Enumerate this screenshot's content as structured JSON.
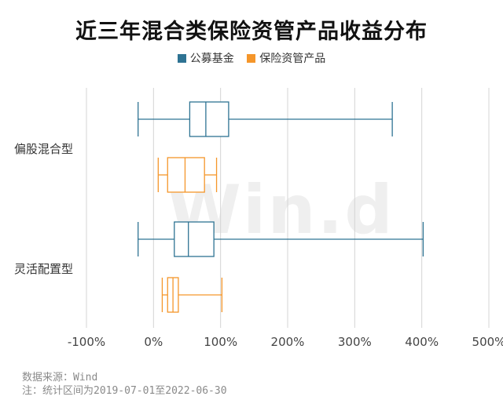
{
  "chart_data": {
    "type": "box",
    "title": "近三年混合类保险资管产品收益分布",
    "categories": [
      "偏股混合型",
      "灵活配置型"
    ],
    "x_tick_labels": [
      "-100%",
      "0%",
      "100%",
      "200%",
      "300%",
      "400%",
      "500%"
    ],
    "xlim": [
      -100,
      500
    ],
    "grid": true,
    "legend_position": "top",
    "series": [
      {
        "name": "公募基金",
        "color": "#2e7393",
        "boxes": [
          {
            "min": -23,
            "q1": 54,
            "median": 78,
            "q3": 112,
            "max": 356
          },
          {
            "min": -23,
            "q1": 31,
            "median": 52,
            "q3": 90,
            "max": 402
          }
        ]
      },
      {
        "name": "保险资管产品",
        "color": "#f5962a",
        "boxes": [
          {
            "min": 7,
            "q1": 21,
            "median": 47,
            "q3": 76,
            "max": 94
          },
          {
            "min": 13,
            "q1": 21,
            "median": 29,
            "q3": 37,
            "max": 102
          }
        ]
      }
    ]
  },
  "watermark": "Win.d",
  "footer": {
    "source": "数据来源：Wind",
    "note": "注：统计区间为2019-07-01至2022-06-30"
  }
}
